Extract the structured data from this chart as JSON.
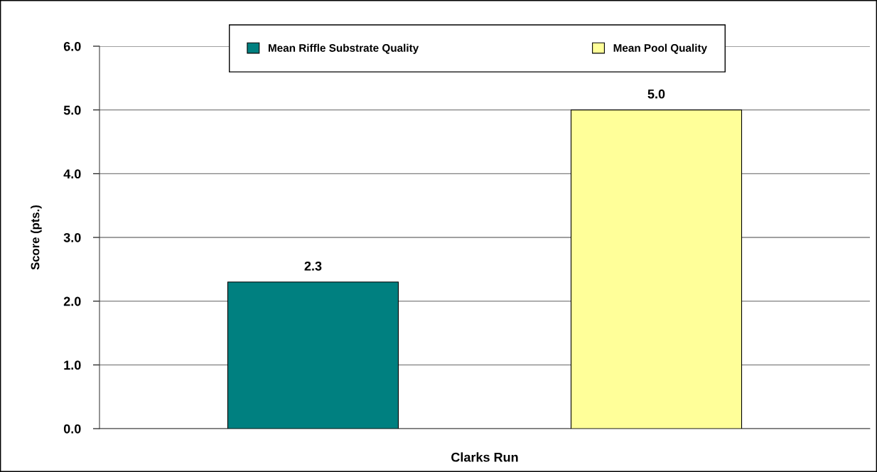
{
  "chart_data": {
    "type": "bar",
    "categories": [
      "Clarks Run"
    ],
    "ylabel": "Score (pts.)",
    "series": [
      {
        "name": "Mean Riffle Substrate Quality",
        "color": "#008080",
        "values": [
          2.3
        ],
        "value_labels": [
          "2.3"
        ]
      },
      {
        "name": "Mean Pool Quality",
        "color": "#ffff99",
        "values": [
          5.0
        ],
        "value_labels": [
          "5.0"
        ]
      }
    ],
    "ylim": [
      0,
      6
    ],
    "yticks": [
      {
        "value": 0,
        "label": "0.0"
      },
      {
        "value": 1,
        "label": "1.0"
      },
      {
        "value": 2,
        "label": "2.0"
      },
      {
        "value": 3,
        "label": "3.0"
      },
      {
        "value": 4,
        "label": "4.0"
      },
      {
        "value": 5,
        "label": "5.0"
      },
      {
        "value": 6,
        "label": "6.0"
      }
    ],
    "grid": "y",
    "legend": "top"
  }
}
